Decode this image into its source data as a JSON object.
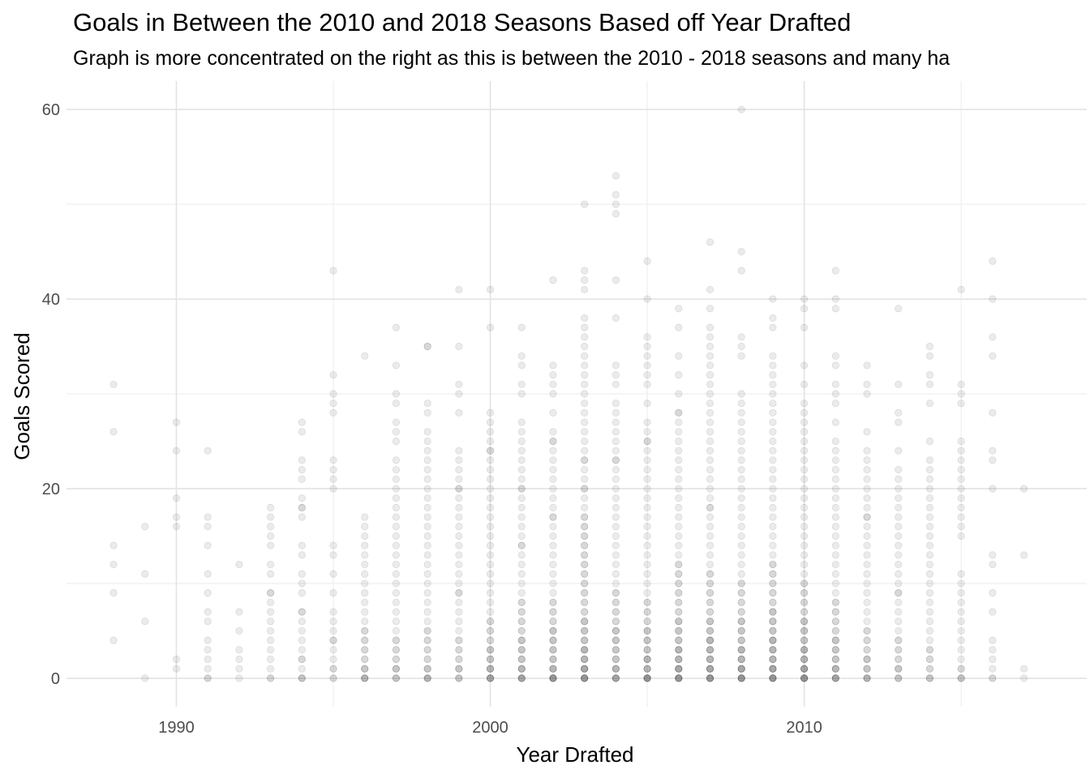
{
  "chart_data": {
    "type": "scatter",
    "title": "Goals in Between the 2010 and 2018 Seasons Based off Year Drafted",
    "subtitle": "Graph is more concentrated on the right as this is between the 2010 - 2018 seasons and many ha",
    "xlabel": "Year Drafted",
    "ylabel": "Goals Scored",
    "xlim": [
      1986.5,
      2019
    ],
    "ylim": [
      -3,
      63
    ],
    "x_ticks": [
      1990,
      2000,
      2010
    ],
    "y_ticks": [
      0,
      20,
      40,
      60
    ],
    "grid": true,
    "legend": "none",
    "point_color": "#000000",
    "point_alpha": 0.08,
    "groups": [
      {
        "x": 1988,
        "y": [
          4,
          9,
          12,
          14,
          26,
          31
        ]
      },
      {
        "x": 1989,
        "y": [
          0,
          6,
          11,
          16
        ]
      },
      {
        "x": 1990,
        "y": [
          1,
          2,
          16,
          17,
          19,
          24,
          27
        ]
      },
      {
        "x": 1991,
        "y": [
          0,
          0,
          1,
          2,
          3,
          4,
          6,
          7,
          9,
          11,
          14,
          16,
          17,
          24
        ]
      },
      {
        "x": 1992,
        "y": [
          0,
          1,
          2,
          3,
          5,
          7,
          12
        ]
      },
      {
        "x": 1993,
        "y": [
          0,
          0,
          1,
          2,
          3,
          4,
          5,
          6,
          7,
          8,
          9,
          9,
          11,
          12,
          14,
          15,
          16,
          17,
          18
        ]
      },
      {
        "x": 1994,
        "y": [
          0,
          0,
          0,
          1,
          2,
          2,
          3,
          4,
          5,
          6,
          7,
          7,
          9,
          10,
          11,
          13,
          14,
          17,
          18,
          18,
          19,
          21,
          22,
          23,
          26,
          27
        ]
      },
      {
        "x": 1995,
        "y": [
          0,
          0,
          1,
          1,
          2,
          3,
          4,
          4,
          5,
          6,
          7,
          9,
          11,
          13,
          14,
          20,
          21,
          22,
          23,
          28,
          29,
          30,
          32,
          43
        ]
      },
      {
        "x": 1996,
        "y": [
          0,
          0,
          0,
          0,
          1,
          1,
          1,
          2,
          2,
          3,
          3,
          4,
          4,
          5,
          5,
          6,
          7,
          8,
          9,
          10,
          11,
          12,
          13,
          14,
          15,
          16,
          17,
          34
        ]
      },
      {
        "x": 1997,
        "y": [
          0,
          0,
          0,
          1,
          1,
          1,
          2,
          2,
          3,
          3,
          4,
          4,
          5,
          6,
          7,
          8,
          9,
          10,
          11,
          12,
          13,
          14,
          15,
          16,
          17,
          18,
          19,
          20,
          21,
          22,
          23,
          25,
          26,
          27,
          29,
          30,
          33,
          37
        ]
      },
      {
        "x": 1998,
        "y": [
          0,
          0,
          0,
          0,
          1,
          1,
          1,
          2,
          2,
          3,
          3,
          4,
          4,
          5,
          5,
          6,
          7,
          8,
          9,
          10,
          11,
          12,
          13,
          14,
          15,
          16,
          17,
          18,
          19,
          20,
          21,
          22,
          23,
          24,
          25,
          26,
          28,
          29,
          35,
          35
        ]
      },
      {
        "x": 1999,
        "y": [
          0,
          0,
          0,
          1,
          1,
          1,
          2,
          2,
          3,
          3,
          4,
          4,
          5,
          6,
          7,
          8,
          9,
          9,
          10,
          11,
          12,
          13,
          14,
          15,
          16,
          17,
          18,
          19,
          20,
          20,
          21,
          22,
          23,
          24,
          28,
          30,
          31,
          35,
          41
        ]
      },
      {
        "x": 2000,
        "y": [
          0,
          0,
          0,
          0,
          0,
          1,
          1,
          1,
          1,
          2,
          2,
          2,
          3,
          3,
          3,
          4,
          4,
          5,
          5,
          6,
          6,
          7,
          8,
          9,
          10,
          11,
          12,
          13,
          14,
          15,
          16,
          17,
          18,
          19,
          20,
          21,
          22,
          23,
          24,
          24,
          25,
          26,
          27,
          28,
          37,
          41
        ]
      },
      {
        "x": 2001,
        "y": [
          0,
          0,
          0,
          0,
          0,
          1,
          1,
          1,
          1,
          2,
          2,
          2,
          3,
          3,
          3,
          4,
          4,
          4,
          5,
          5,
          6,
          6,
          7,
          7,
          8,
          8,
          9,
          10,
          11,
          12,
          13,
          14,
          14,
          15,
          16,
          17,
          18,
          19,
          20,
          20,
          21,
          22,
          23,
          24,
          25,
          26,
          27,
          30,
          31,
          33,
          34,
          37
        ]
      },
      {
        "x": 2002,
        "y": [
          0,
          0,
          0,
          0,
          0,
          0,
          1,
          1,
          1,
          1,
          2,
          2,
          2,
          3,
          3,
          3,
          4,
          4,
          4,
          5,
          5,
          5,
          6,
          6,
          7,
          7,
          8,
          8,
          9,
          10,
          11,
          12,
          13,
          14,
          15,
          16,
          17,
          17,
          18,
          19,
          20,
          21,
          22,
          23,
          24,
          25,
          25,
          26,
          28,
          30,
          31,
          32,
          33,
          42
        ]
      },
      {
        "x": 2003,
        "y": [
          0,
          0,
          0,
          0,
          0,
          0,
          1,
          1,
          1,
          1,
          1,
          2,
          2,
          2,
          2,
          3,
          3,
          3,
          3,
          4,
          4,
          4,
          5,
          5,
          5,
          6,
          6,
          6,
          7,
          7,
          8,
          8,
          9,
          9,
          10,
          10,
          11,
          11,
          12,
          12,
          13,
          13,
          14,
          14,
          15,
          15,
          16,
          16,
          17,
          17,
          18,
          19,
          20,
          20,
          21,
          22,
          23,
          23,
          24,
          25,
          26,
          27,
          28,
          29,
          30,
          31,
          32,
          33,
          34,
          35,
          36,
          37,
          38,
          41,
          42,
          43,
          50
        ]
      },
      {
        "x": 2004,
        "y": [
          0,
          0,
          0,
          0,
          0,
          1,
          1,
          1,
          1,
          2,
          2,
          2,
          3,
          3,
          3,
          4,
          4,
          4,
          5,
          5,
          5,
          6,
          6,
          7,
          7,
          8,
          8,
          9,
          9,
          10,
          11,
          12,
          13,
          14,
          15,
          16,
          17,
          18,
          19,
          20,
          21,
          22,
          23,
          23,
          24,
          25,
          26,
          27,
          28,
          29,
          31,
          32,
          33,
          38,
          42,
          49,
          50,
          51,
          53
        ]
      },
      {
        "x": 2005,
        "y": [
          0,
          0,
          0,
          0,
          0,
          0,
          1,
          1,
          1,
          1,
          2,
          2,
          2,
          2,
          3,
          3,
          3,
          4,
          4,
          4,
          5,
          5,
          5,
          6,
          6,
          7,
          7,
          8,
          8,
          9,
          10,
          11,
          12,
          13,
          14,
          15,
          16,
          17,
          18,
          19,
          20,
          21,
          22,
          23,
          24,
          25,
          25,
          26,
          27,
          29,
          31,
          32,
          33,
          34,
          35,
          36,
          40,
          44
        ]
      },
      {
        "x": 2006,
        "y": [
          0,
          0,
          0,
          0,
          0,
          0,
          1,
          1,
          1,
          1,
          1,
          2,
          2,
          2,
          2,
          3,
          3,
          3,
          3,
          4,
          4,
          4,
          5,
          5,
          5,
          6,
          6,
          6,
          7,
          7,
          8,
          8,
          9,
          9,
          10,
          10,
          11,
          11,
          12,
          12,
          13,
          14,
          15,
          16,
          17,
          18,
          19,
          20,
          21,
          22,
          23,
          24,
          25,
          26,
          27,
          28,
          28,
          30,
          32,
          34,
          37,
          39
        ]
      },
      {
        "x": 2007,
        "y": [
          0,
          0,
          0,
          0,
          0,
          0,
          1,
          1,
          1,
          1,
          1,
          2,
          2,
          2,
          2,
          3,
          3,
          3,
          3,
          4,
          4,
          4,
          4,
          5,
          5,
          5,
          6,
          6,
          6,
          7,
          7,
          8,
          8,
          9,
          9,
          10,
          10,
          11,
          11,
          12,
          13,
          14,
          15,
          16,
          17,
          18,
          18,
          19,
          20,
          21,
          22,
          23,
          24,
          25,
          26,
          27,
          28,
          29,
          30,
          31,
          32,
          33,
          34,
          35,
          36,
          37,
          39,
          41,
          46
        ]
      },
      {
        "x": 2008,
        "y": [
          0,
          0,
          0,
          0,
          0,
          0,
          1,
          1,
          1,
          1,
          1,
          2,
          2,
          2,
          2,
          3,
          3,
          3,
          3,
          4,
          4,
          4,
          5,
          5,
          5,
          6,
          6,
          6,
          7,
          7,
          8,
          8,
          9,
          9,
          10,
          10,
          11,
          12,
          13,
          14,
          15,
          16,
          17,
          18,
          19,
          20,
          21,
          22,
          23,
          24,
          25,
          26,
          27,
          28,
          29,
          30,
          34,
          35,
          36,
          43,
          45,
          60
        ]
      },
      {
        "x": 2009,
        "y": [
          0,
          0,
          0,
          0,
          0,
          0,
          1,
          1,
          1,
          1,
          1,
          2,
          2,
          2,
          2,
          3,
          3,
          3,
          3,
          4,
          4,
          4,
          4,
          5,
          5,
          5,
          6,
          6,
          6,
          7,
          7,
          7,
          8,
          8,
          9,
          9,
          10,
          10,
          11,
          11,
          12,
          12,
          13,
          14,
          15,
          16,
          17,
          18,
          19,
          20,
          21,
          22,
          23,
          24,
          25,
          26,
          27,
          28,
          29,
          30,
          31,
          32,
          33,
          34,
          37,
          38,
          40
        ]
      },
      {
        "x": 2010,
        "y": [
          0,
          0,
          0,
          0,
          0,
          0,
          1,
          1,
          1,
          1,
          1,
          2,
          2,
          2,
          2,
          3,
          3,
          3,
          3,
          4,
          4,
          4,
          5,
          5,
          5,
          6,
          6,
          6,
          7,
          7,
          8,
          8,
          9,
          9,
          10,
          10,
          11,
          12,
          13,
          14,
          15,
          16,
          17,
          18,
          19,
          20,
          21,
          22,
          23,
          24,
          25,
          26,
          27,
          28,
          29,
          31,
          33,
          37,
          39,
          40
        ]
      },
      {
        "x": 2011,
        "y": [
          0,
          0,
          0,
          0,
          0,
          1,
          1,
          1,
          1,
          2,
          2,
          2,
          3,
          3,
          3,
          4,
          4,
          4,
          5,
          5,
          6,
          6,
          7,
          7,
          8,
          8,
          9,
          10,
          11,
          12,
          13,
          14,
          15,
          16,
          17,
          18,
          19,
          20,
          21,
          22,
          23,
          24,
          25,
          27,
          29,
          30,
          31,
          33,
          34,
          39,
          40,
          43
        ]
      },
      {
        "x": 2012,
        "y": [
          0,
          0,
          0,
          0,
          1,
          1,
          1,
          2,
          2,
          2,
          3,
          3,
          4,
          4,
          5,
          5,
          6,
          7,
          8,
          9,
          10,
          11,
          12,
          13,
          14,
          15,
          16,
          17,
          17,
          18,
          19,
          20,
          21,
          22,
          23,
          24,
          26,
          30,
          31,
          33
        ]
      },
      {
        "x": 2013,
        "y": [
          0,
          0,
          0,
          1,
          1,
          1,
          2,
          2,
          3,
          3,
          4,
          4,
          5,
          6,
          7,
          8,
          9,
          9,
          10,
          11,
          12,
          13,
          14,
          15,
          16,
          17,
          18,
          19,
          20,
          21,
          22,
          24,
          27,
          28,
          31,
          39
        ]
      },
      {
        "x": 2014,
        "y": [
          0,
          0,
          0,
          1,
          1,
          2,
          2,
          3,
          3,
          4,
          5,
          6,
          7,
          8,
          9,
          10,
          11,
          12,
          13,
          14,
          15,
          16,
          17,
          18,
          19,
          20,
          21,
          22,
          23,
          25,
          29,
          31,
          32,
          34,
          35
        ]
      },
      {
        "x": 2015,
        "y": [
          0,
          0,
          0,
          1,
          1,
          2,
          3,
          4,
          5,
          6,
          7,
          8,
          9,
          10,
          11,
          15,
          16,
          17,
          18,
          19,
          20,
          21,
          22,
          23,
          24,
          25,
          29,
          30,
          31,
          41
        ]
      },
      {
        "x": 2016,
        "y": [
          0,
          0,
          1,
          2,
          3,
          4,
          7,
          9,
          12,
          13,
          20,
          23,
          24,
          28,
          34,
          36,
          40,
          44
        ]
      },
      {
        "x": 2017,
        "y": [
          0,
          1,
          13,
          20
        ]
      }
    ]
  }
}
